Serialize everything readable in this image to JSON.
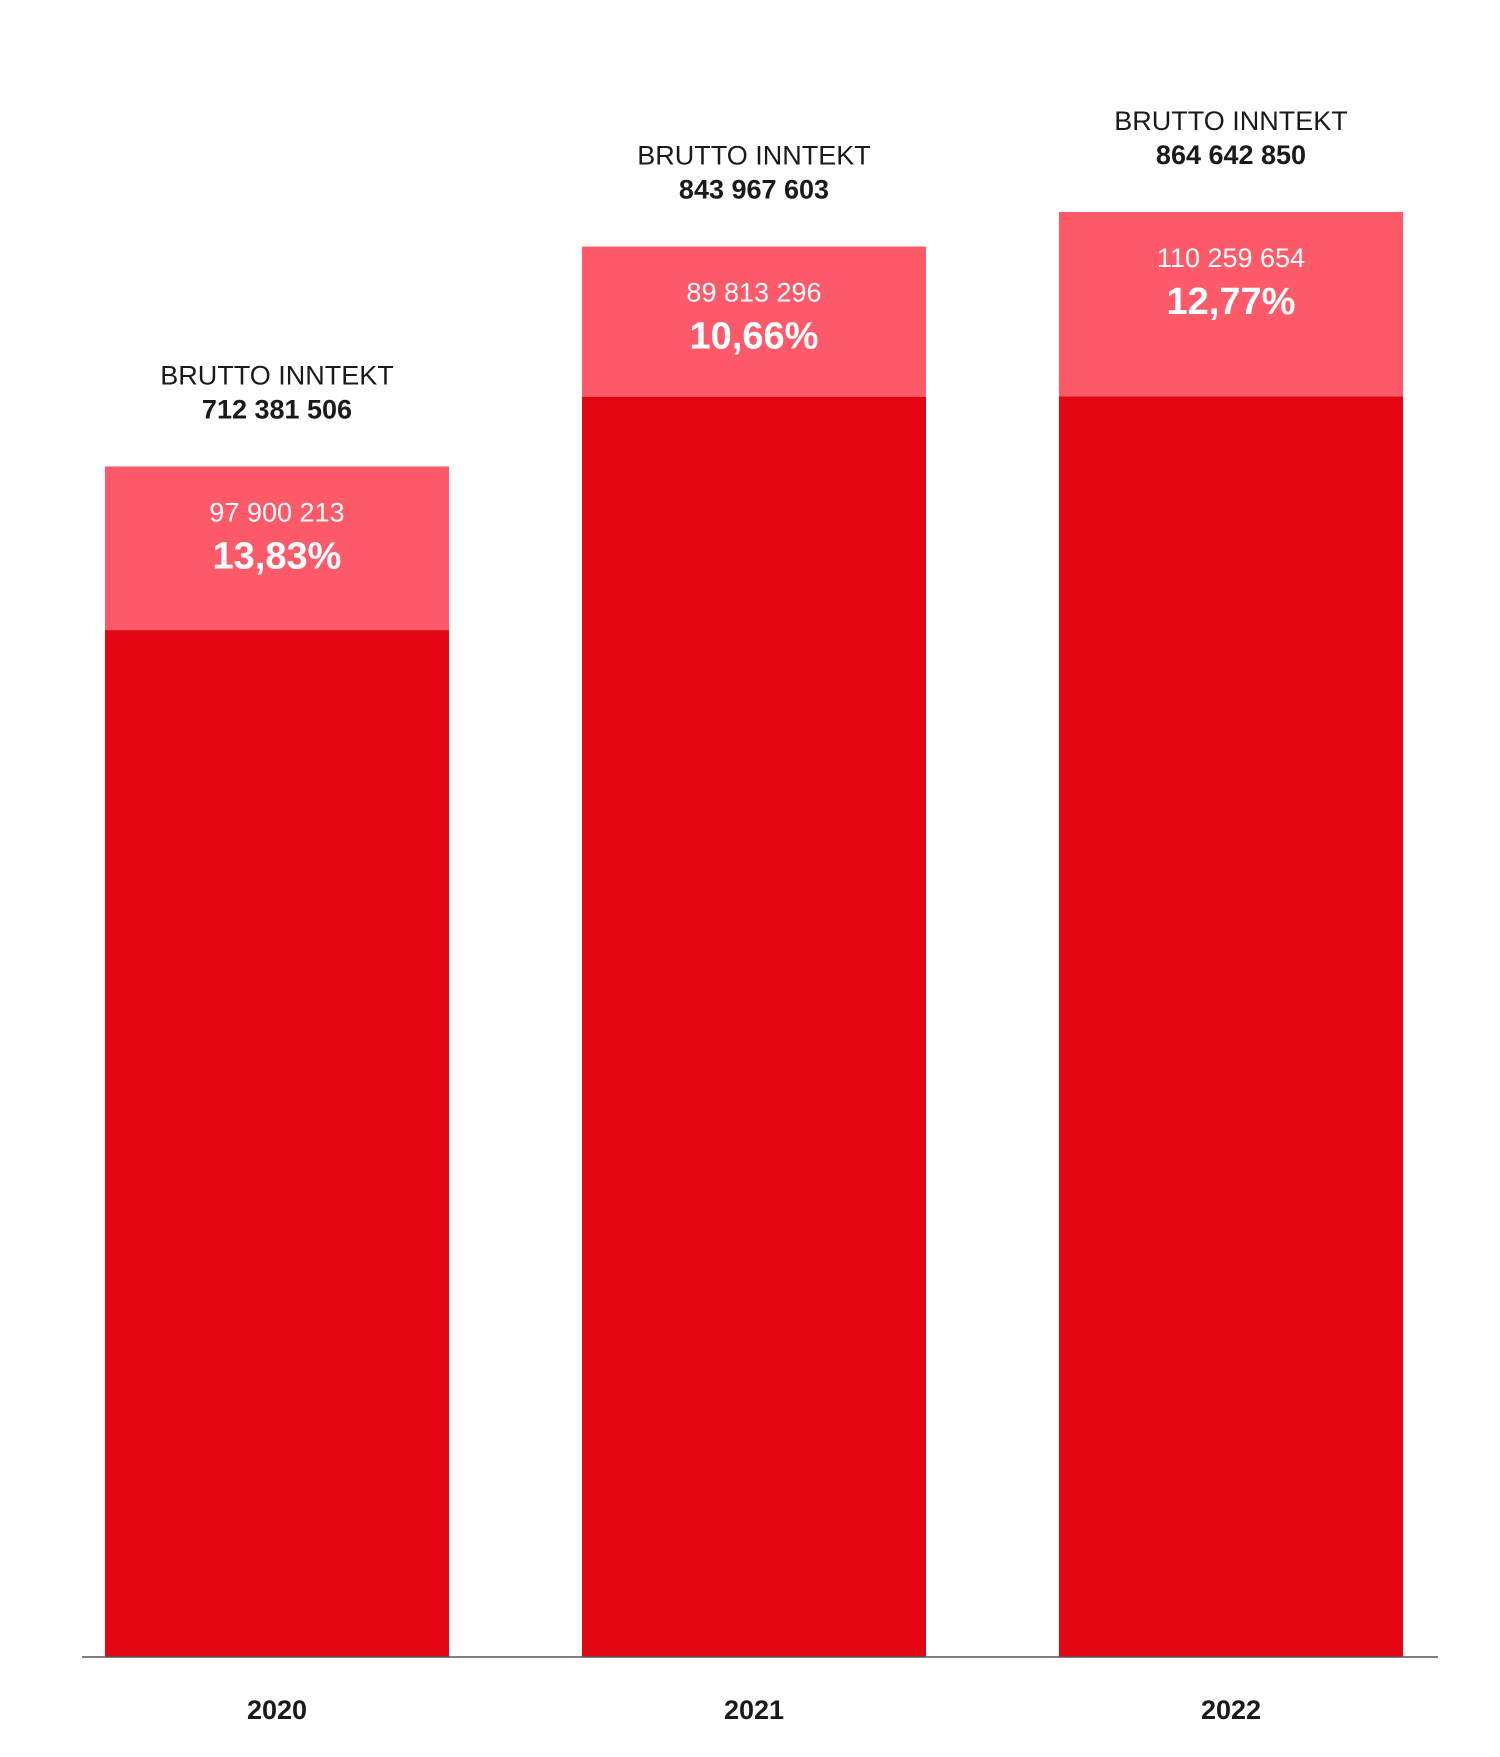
{
  "chart_data": {
    "type": "bar",
    "stacked": true,
    "categories": [
      "2020",
      "2021",
      "2022"
    ],
    "totals": [
      712381506,
      843967603,
      864642850
    ],
    "total_label": "BRUTTO INNTEKT",
    "total_texts": [
      "712 381 506",
      "843 967 603",
      "864 642 850"
    ],
    "top_segment": {
      "values": [
        97900213,
        89813296,
        110259654
      ],
      "value_texts": [
        "97 900 213",
        "89 813 296",
        "110 259 654"
      ],
      "percent_texts": [
        "13,83%",
        "10,66%",
        "12,77%"
      ]
    },
    "ylim": [
      0,
      864642850
    ],
    "grid": false,
    "legend": "none",
    "colors": {
      "base": "#e20613",
      "top": "#ff5a6a",
      "axis": "#555555",
      "text": "#1a1a1a",
      "top_text": "#ffffff"
    }
  }
}
